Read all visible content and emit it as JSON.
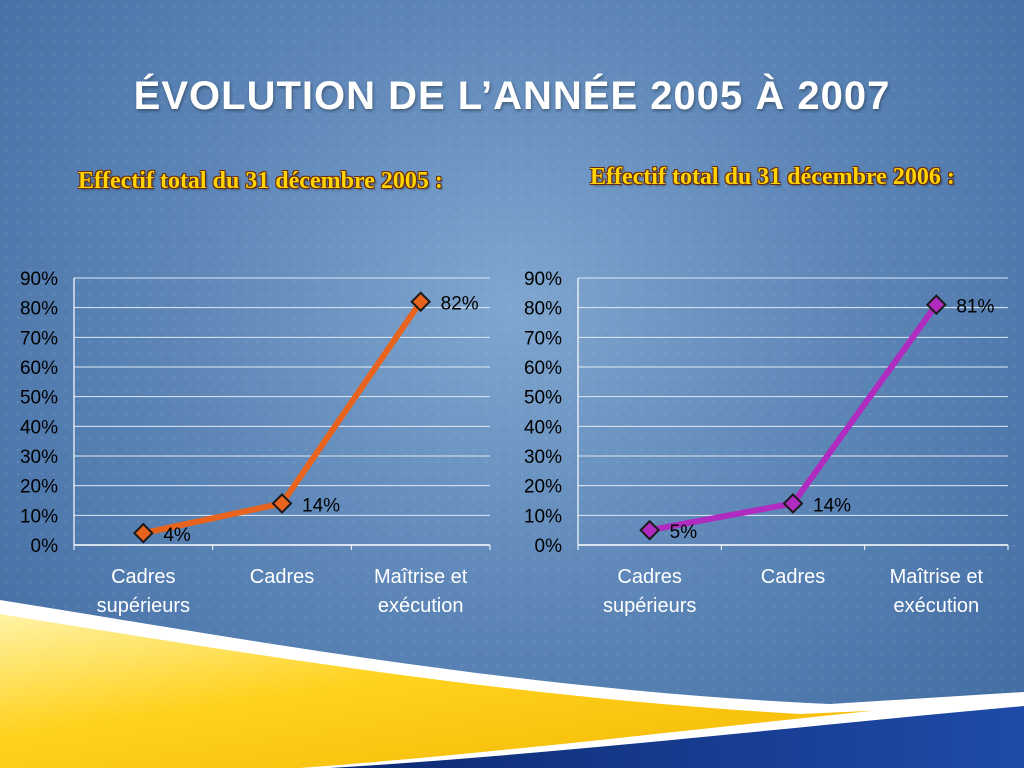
{
  "title": "ÉVOLUTION DE L’ANNÉE 2005 À 2007",
  "chart_data": [
    {
      "type": "line",
      "title": "Effectif total du 31 décembre 2005 :",
      "categories": [
        [
          "Cadres",
          "supérieurs"
        ],
        [
          "Cadres"
        ],
        [
          "Maîtrise et",
          "exécution"
        ]
      ],
      "values": [
        4,
        14,
        82
      ],
      "data_labels": [
        "4%",
        "14%",
        "82%"
      ],
      "yticks": [
        "0%",
        "10%",
        "20%",
        "30%",
        "40%",
        "50%",
        "60%",
        "70%",
        "80%",
        "90%"
      ],
      "ylim": [
        0,
        90
      ],
      "grid": true,
      "line_color": "#e8641e"
    },
    {
      "type": "line",
      "title": "Effectif total du 31 décembre 2006 :",
      "categories": [
        [
          "Cadres",
          "supérieurs"
        ],
        [
          "Cadres"
        ],
        [
          "Maîtrise et",
          "exécution"
        ]
      ],
      "values": [
        5,
        14,
        81
      ],
      "data_labels": [
        "5%",
        "14%",
        "81%"
      ],
      "yticks": [
        "0%",
        "10%",
        "20%",
        "30%",
        "40%",
        "50%",
        "60%",
        "70%",
        "80%",
        "90%"
      ],
      "ylim": [
        0,
        90
      ],
      "grid": true,
      "line_color": "#b02bbf"
    }
  ]
}
